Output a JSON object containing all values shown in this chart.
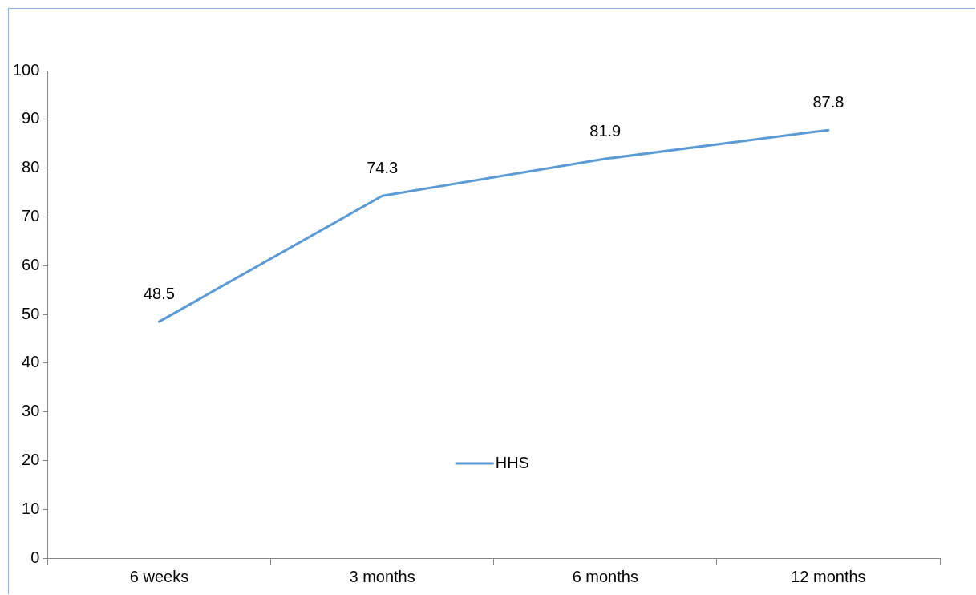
{
  "chart_data": {
    "type": "line",
    "categories": [
      "6 weeks",
      "3 months",
      "6 months",
      "12 months"
    ],
    "series": [
      {
        "name": "HHS",
        "color": "#5b9bd5",
        "values": [
          48.5,
          74.3,
          81.9,
          87.8
        ]
      }
    ],
    "ylim": [
      0,
      100
    ],
    "yticks": [
      0,
      10,
      20,
      30,
      40,
      50,
      60,
      70,
      80,
      90,
      100
    ],
    "grid": false,
    "legend": "bottom",
    "data_labels": true,
    "marker": "none"
  }
}
